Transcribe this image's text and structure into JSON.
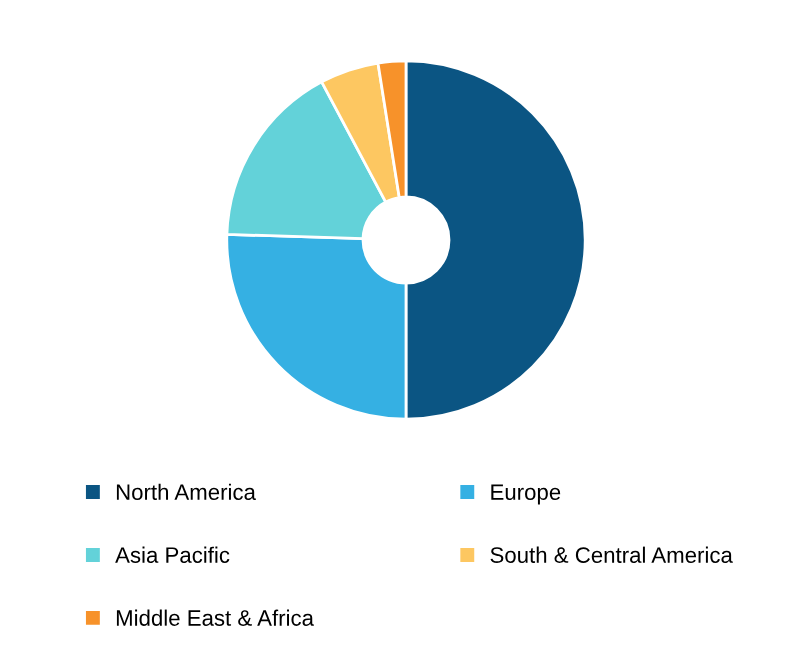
{
  "chart_data": {
    "type": "donut",
    "categories": [
      "North America",
      "Europe",
      "Asia Pacific",
      "South & Central America",
      "Middle East & Africa"
    ],
    "values": [
      50,
      25.5,
      16.7,
      5.3,
      2.5
    ],
    "colors": [
      "#0b5583",
      "#35b0e3",
      "#63d2d9",
      "#fdc761",
      "#f7922a"
    ],
    "legend": "bottom"
  }
}
